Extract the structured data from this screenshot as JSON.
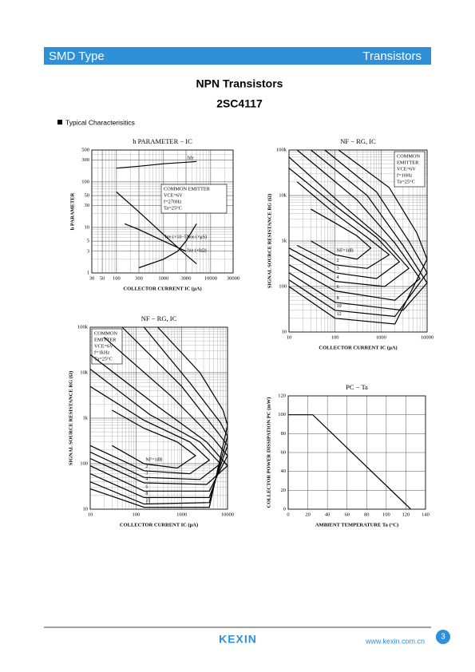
{
  "header": {
    "left": "SMD Type",
    "right": "Transistors"
  },
  "title": "NPN Transistors",
  "part": "2SC4117",
  "section": "Typical Characterisitics",
  "chart_data": [
    {
      "type": "line",
      "title": "h PARAMETER − IC",
      "xlabel": "COLLECTOR CURRENT  IC (μA)",
      "ylabel": "h PARAMETER",
      "xlog": true,
      "ylog": true,
      "grid": true,
      "xlim": [
        30,
        30000
      ],
      "ylim": [
        1,
        500
      ],
      "xticks": [
        30,
        50,
        100,
        300,
        1000,
        3000,
        10000,
        30000
      ],
      "yticks": [
        1,
        3,
        5,
        10,
        30,
        50,
        100,
        300,
        500
      ],
      "notes": [
        "COMMON EMITTER",
        "VCE=6V",
        "f=270Hz",
        "Ta=25°C"
      ],
      "series": [
        {
          "name": "hfe",
          "color": "#000000",
          "x": [
            100,
            300,
            1000,
            3000,
            5000
          ],
          "values": [
            200,
            220,
            250,
            270,
            280
          ]
        },
        {
          "name": "hie (×kΩ)",
          "color": "#000000",
          "x": [
            100,
            300,
            1000,
            3000,
            5000
          ],
          "values": [
            60,
            22,
            7,
            2.5,
            1.6
          ]
        },
        {
          "name": "hre (×10−5)",
          "color": "#000000",
          "x": [
            150,
            300,
            1000,
            3000
          ],
          "values": [
            12,
            9,
            5,
            3
          ]
        },
        {
          "name": "hoe (×μS)",
          "color": "#000000",
          "x": [
            300,
            1000,
            2000,
            3000,
            5000
          ],
          "values": [
            1.3,
            2,
            3,
            5,
            12
          ]
        }
      ]
    },
    {
      "type": "line",
      "title": "NF − RG, IC",
      "xlabel": "COLLECTOR CURRENT  IC (μA)",
      "ylabel": "SIGNAL SOURCE RESISTANCE  RG (Ω)",
      "xlog": true,
      "ylog": true,
      "grid": true,
      "xlim": [
        10,
        10000
      ],
      "ylim": [
        10,
        100000
      ],
      "xticks": [
        10,
        100,
        1000,
        10000
      ],
      "yticks": [
        10,
        100,
        {
          "value": 1000,
          "label": "1k"
        },
        {
          "value": 10000,
          "label": "10k"
        },
        {
          "value": 100000,
          "label": "100k"
        }
      ],
      "notes": [
        "COMMON",
        "EMITTER",
        "VCE=6V",
        "f=10Hz",
        "Ta=25°C"
      ],
      "series": [
        {
          "name": "NF=1dB",
          "color": "#000000",
          "x": [
            30,
            100,
            300,
            600,
            300,
            100,
            30
          ],
          "values": [
            5000,
            2500,
            1300,
            700,
            400,
            500,
            1000
          ]
        },
        {
          "name": "2",
          "color": "#000000",
          "x": [
            15,
            100,
            500,
            1500,
            500,
            100,
            15
          ],
          "values": [
            20000,
            4000,
            1200,
            500,
            250,
            300,
            800
          ]
        },
        {
          "name": "3",
          "color": "#000000",
          "x": [
            10,
            100,
            800,
            2500,
            800,
            100,
            10
          ],
          "values": [
            40000,
            6000,
            1200,
            350,
            150,
            200,
            700
          ]
        },
        {
          "name": "4",
          "color": "#000000",
          "x": [
            10,
            150,
            1200,
            4000,
            1200,
            100,
            10
          ],
          "values": [
            70000,
            6000,
            1000,
            250,
            100,
            130,
            500
          ]
        },
        {
          "name": "6",
          "color": "#000000",
          "x": [
            15,
            300,
            2000,
            7000,
            2000,
            100,
            10
          ],
          "values": [
            100000,
            8000,
            900,
            150,
            50,
            80,
            300
          ]
        },
        {
          "name": "8",
          "color": "#000000",
          "x": [
            30,
            500,
            3000,
            10000,
            3000,
            100,
            10
          ],
          "values": [
            100000,
            10000,
            800,
            120,
            30,
            45,
            200
          ]
        },
        {
          "name": "10",
          "color": "#000000",
          "x": [
            60,
            800,
            4000,
            10000,
            2000,
            100,
            10
          ],
          "values": [
            100000,
            12000,
            1000,
            200,
            22,
            30,
            140
          ]
        },
        {
          "name": "12",
          "color": "#000000",
          "x": [
            120,
            1500,
            6000,
            10000,
            2000,
            100,
            10
          ],
          "values": [
            100000,
            15000,
            1500,
            400,
            15,
            20,
            100
          ]
        }
      ]
    },
    {
      "type": "line",
      "title": "NF − RG, IC",
      "xlabel": "COLLECTOR CURRENT  IC (μA)",
      "ylabel": "SIGNAL SOURCE RESISTANCE  RG (Ω)",
      "xlog": true,
      "ylog": true,
      "grid": true,
      "xlim": [
        10,
        10000
      ],
      "ylim": [
        10,
        100000
      ],
      "xticks": [
        10,
        100,
        1000,
        10000
      ],
      "yticks": [
        10,
        100,
        {
          "value": 1000,
          "label": "1k"
        },
        {
          "value": 10000,
          "label": "10k"
        },
        {
          "value": 100000,
          "label": "100k"
        }
      ],
      "notes": [
        "COMMON",
        "EMITTER",
        "VCE=6V",
        "f=1kHz",
        "Ta=25°C"
      ],
      "series": [
        {
          "name": "NF=1dB",
          "color": "#000000",
          "x": [
            30,
            150,
            800,
            2000,
            800,
            150,
            30
          ],
          "values": [
            1500,
            600,
            300,
            150,
            80,
            100,
            250
          ]
        },
        {
          "name": "2",
          "color": "#000000",
          "x": [
            10,
            150,
            1500,
            4000,
            1500,
            150,
            10
          ],
          "values": [
            5000,
            900,
            300,
            120,
            60,
            70,
            250
          ]
        },
        {
          "name": "3",
          "color": "#000000",
          "x": [
            10,
            200,
            2500,
            7000,
            2500,
            150,
            10
          ],
          "values": [
            12000,
            1200,
            300,
            100,
            45,
            50,
            180
          ]
        },
        {
          "name": "4",
          "color": "#000000",
          "x": [
            10,
            300,
            3500,
            10000,
            3500,
            150,
            10
          ],
          "values": [
            25000,
            1800,
            300,
            90,
            35,
            38,
            130
          ]
        },
        {
          "name": "6",
          "color": "#000000",
          "x": [
            20,
            600,
            5000,
            10000,
            4000,
            150,
            10
          ],
          "values": [
            60000,
            3000,
            350,
            150,
            25,
            25,
            90
          ]
        },
        {
          "name": "8",
          "color": "#000000",
          "x": [
            50,
            1000,
            6000,
            10000,
            4000,
            150,
            10
          ],
          "values": [
            100000,
            5000,
            500,
            250,
            18,
            18,
            60
          ]
        },
        {
          "name": "10",
          "color": "#000000",
          "x": [
            150,
            1500,
            7000,
            10000,
            4000,
            150,
            10
          ],
          "values": [
            100000,
            6000,
            800,
            400,
            14,
            13,
            40
          ]
        },
        {
          "name": "12",
          "color": "#000000",
          "x": [
            300,
            2500,
            8000,
            10000,
            4000,
            150,
            10
          ],
          "values": [
            100000,
            10000,
            1500,
            700,
            11,
            11,
            28
          ]
        }
      ]
    },
    {
      "type": "line",
      "title": "PC − Ta",
      "xlabel": "AMBIENT TEMPERATURE  Ta (°C)",
      "ylabel": "COLLECTOR POWER DISSIPATION PC (mW)",
      "xlog": false,
      "ylog": false,
      "grid": true,
      "xlim": [
        0,
        140
      ],
      "ylim": [
        0,
        120
      ],
      "xticks": [
        0,
        20,
        40,
        60,
        80,
        100,
        120,
        140
      ],
      "yticks": [
        0,
        20,
        40,
        60,
        80,
        100,
        120
      ],
      "series": [
        {
          "name": "PC",
          "color": "#000000",
          "x": [
            0,
            25,
            125
          ],
          "values": [
            100,
            100,
            0
          ]
        }
      ]
    }
  ],
  "footer": {
    "logo": "KEXIN",
    "url": "www.kexin.com.cn",
    "page": "3"
  }
}
